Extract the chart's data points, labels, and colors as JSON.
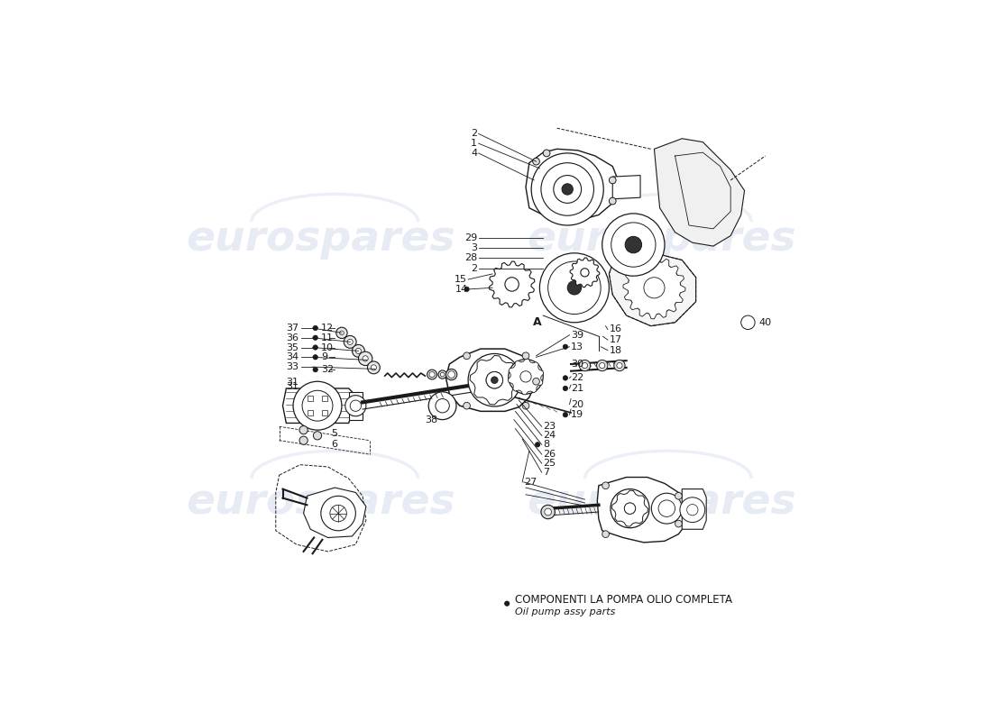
{
  "bg_color": "#ffffff",
  "watermark_text": "eurospares",
  "watermark_color": "#c8d4e8",
  "legend_text_it": "COMPONENTI LA POMPA OLIO COMPLETA",
  "legend_text_en": "Oil pump assy parts",
  "line_color": "#1a1a1a",
  "text_color": "#1a1a1a",
  "font_size": 7.5,
  "diagram_color": "#1a1a1a",
  "label_font_size": 8.0,
  "watermark_font_size": 34,
  "watermark_alpha": 0.45
}
